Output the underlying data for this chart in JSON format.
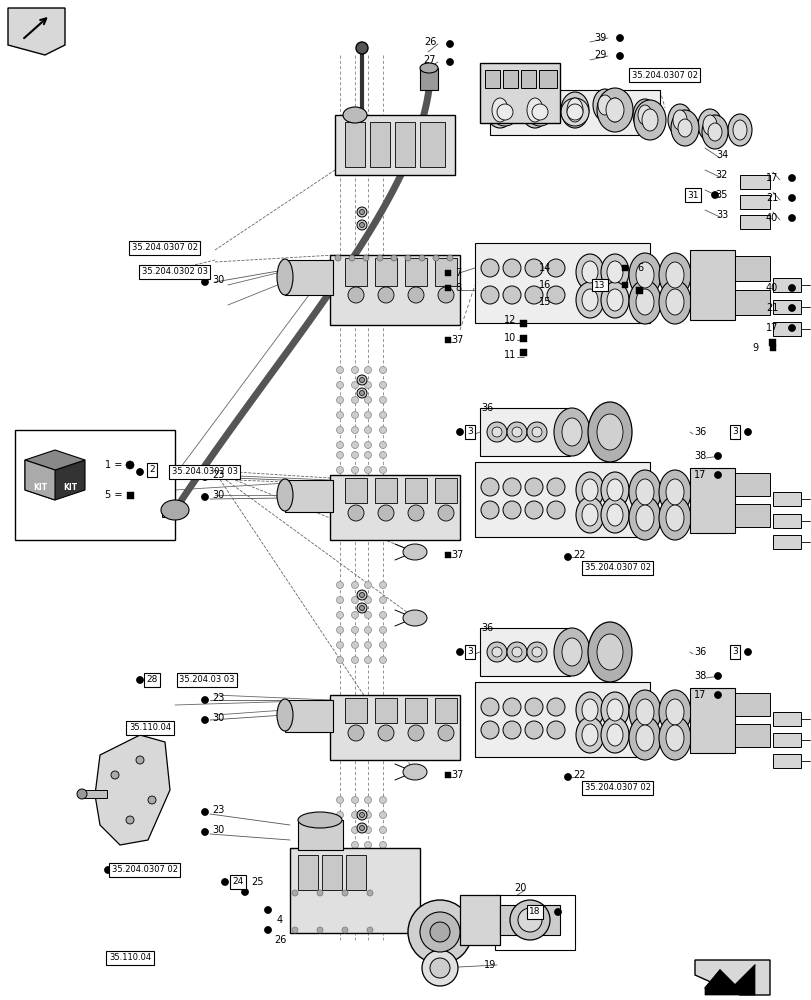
{
  "bg_color": "#ffffff",
  "fig_width": 8.12,
  "fig_height": 10.0,
  "dpi": 100
}
